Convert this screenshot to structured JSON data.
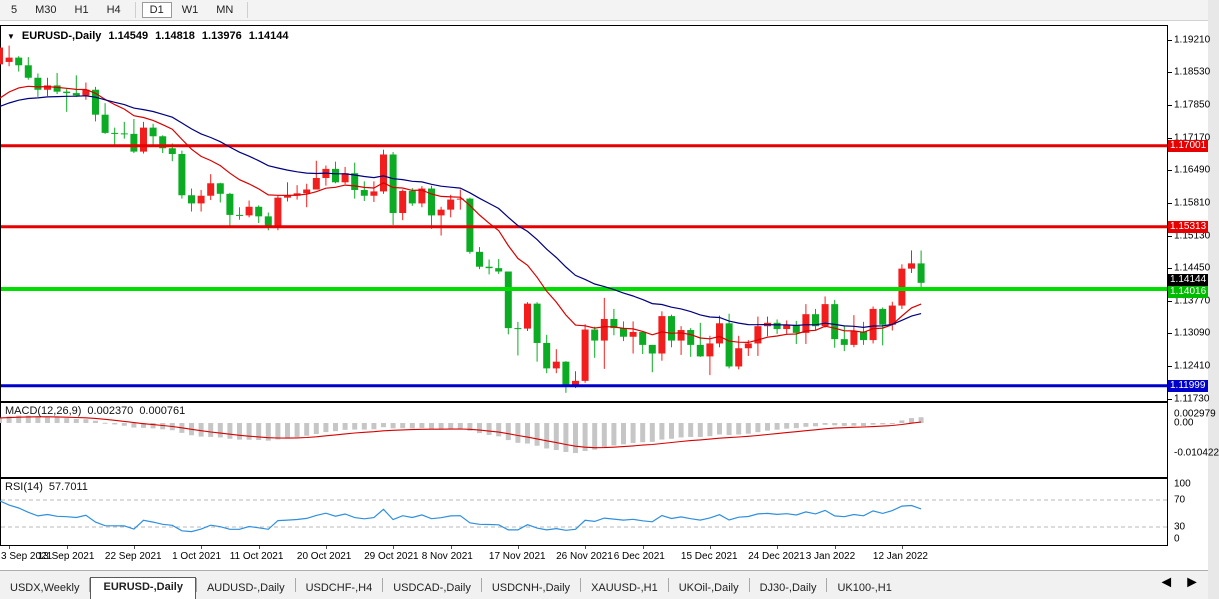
{
  "toolbar": {
    "timeframes": [
      "5",
      "M30",
      "H1",
      "H4",
      "D1",
      "W1",
      "MN"
    ],
    "active_timeframe": "D1",
    "separators_after": [
      "H4",
      "MN"
    ]
  },
  "chart": {
    "symbol_label": "EURUSD-,Daily",
    "ohlc": {
      "open": "1.14549",
      "high": "1.14818",
      "low": "1.13976",
      "close": "1.14144"
    },
    "colors": {
      "bull": "#f21d1d",
      "bear": "#0cab24",
      "ma_fast": "#d90000",
      "ma_slow": "#00007e",
      "background": "#ffffff",
      "border": "#000000"
    },
    "hlines": [
      {
        "price": 1.17001,
        "color": "#e60000",
        "width": 3
      },
      {
        "price": 1.15313,
        "color": "#e60000",
        "width": 3
      },
      {
        "price": 1.14016,
        "color": "#00dd00",
        "width": 4
      },
      {
        "price": 1.11999,
        "color": "#0000cc",
        "width": 3
      }
    ],
    "price_axis": {
      "labels": [
        "1.19210",
        "1.18530",
        "1.17850",
        "1.17170",
        "1.16490",
        "1.15810",
        "1.15130",
        "1.14450",
        "1.13770",
        "1.13090",
        "1.12410",
        "1.11730"
      ],
      "badges": [
        {
          "text": "1.17001",
          "bg": "#e60000",
          "price": 1.17001
        },
        {
          "text": "1.15313",
          "bg": "#e60000",
          "price": 1.15313
        },
        {
          "text": "1.14144",
          "bg": "#000000",
          "price": 1.14144
        },
        {
          "text": "1.14016",
          "bg": "#00bb00",
          "price": 1.14016
        },
        {
          "text": "1.11999",
          "bg": "#0000cc",
          "price": 1.11999
        }
      ]
    },
    "date_axis": [
      {
        "text": "3 Sep 2021",
        "i": 1
      },
      {
        "text": "13 Sep 2021",
        "i": 7
      },
      {
        "text": "22 Sep 2021",
        "i": 14
      },
      {
        "text": "1 Oct 2021",
        "i": 21
      },
      {
        "text": "11 Oct 2021",
        "i": 27
      },
      {
        "text": "20 Oct 2021",
        "i": 34
      },
      {
        "text": "29 Oct 2021",
        "i": 41
      },
      {
        "text": "8 Nov 2021",
        "i": 47
      },
      {
        "text": "17 Nov 2021",
        "i": 54
      },
      {
        "text": "26 Nov 2021",
        "i": 61
      },
      {
        "text": "6 Dec 2021",
        "i": 67
      },
      {
        "text": "15 Dec 2021",
        "i": 74
      },
      {
        "text": "24 Dec 2021",
        "i": 81
      },
      {
        "text": "3 Jan 2022",
        "i": 87
      },
      {
        "text": "12 Jan 2022",
        "i": 94
      }
    ]
  },
  "chart_data": {
    "type": "candlestick",
    "symbol": "EURUSD",
    "timeframe": "Daily",
    "note": "up candles drawn red, down candles drawn green in this template",
    "visible_price_range": [
      1.1168,
      1.1952
    ],
    "candles": [
      [
        "2021-09-02",
        1.187,
        1.1911,
        1.1855,
        1.1905
      ],
      [
        "2021-09-03",
        1.1875,
        1.1909,
        1.1866,
        1.1884
      ],
      [
        "2021-09-06",
        1.1884,
        1.1887,
        1.1855,
        1.1868
      ],
      [
        "2021-09-07",
        1.1868,
        1.1885,
        1.1838,
        1.1842
      ],
      [
        "2021-09-08",
        1.1842,
        1.1851,
        1.1802,
        1.1817
      ],
      [
        "2021-09-09",
        1.1817,
        1.1842,
        1.1804,
        1.1826
      ],
      [
        "2021-09-10",
        1.1826,
        1.1852,
        1.1808,
        1.1813
      ],
      [
        "2021-09-13",
        1.1813,
        1.1819,
        1.1771,
        1.181
      ],
      [
        "2021-09-14",
        1.181,
        1.1847,
        1.1802,
        1.1805
      ],
      [
        "2021-09-15",
        1.1805,
        1.1832,
        1.1796,
        1.1817
      ],
      [
        "2021-09-16",
        1.1817,
        1.1823,
        1.1751,
        1.1765
      ],
      [
        "2021-09-17",
        1.1765,
        1.1789,
        1.1725,
        1.1727
      ],
      [
        "2021-09-20",
        1.1727,
        1.1738,
        1.17,
        1.1726
      ],
      [
        "2021-09-21",
        1.1726,
        1.175,
        1.1715,
        1.1725
      ],
      [
        "2021-09-22",
        1.1725,
        1.1756,
        1.1685,
        1.1688
      ],
      [
        "2021-09-23",
        1.1688,
        1.175,
        1.1684,
        1.1738
      ],
      [
        "2021-09-24",
        1.1738,
        1.1746,
        1.1702,
        1.172
      ],
      [
        "2021-09-27",
        1.172,
        1.1722,
        1.1685,
        1.1695
      ],
      [
        "2021-09-28",
        1.1695,
        1.1705,
        1.1668,
        1.1683
      ],
      [
        "2021-09-29",
        1.1683,
        1.169,
        1.159,
        1.1597
      ],
      [
        "2021-09-30",
        1.1597,
        1.1611,
        1.1563,
        1.158
      ],
      [
        "2021-10-01",
        1.158,
        1.1608,
        1.1563,
        1.1596
      ],
      [
        "2021-10-04",
        1.1596,
        1.1641,
        1.1587,
        1.1622
      ],
      [
        "2021-10-05",
        1.1622,
        1.1623,
        1.1582,
        1.16
      ],
      [
        "2021-10-06",
        1.16,
        1.1602,
        1.1529,
        1.1556
      ],
      [
        "2021-10-07",
        1.1556,
        1.1572,
        1.1546,
        1.1555
      ],
      [
        "2021-10-08",
        1.1555,
        1.1586,
        1.1551,
        1.1573
      ],
      [
        "2021-10-11",
        1.1573,
        1.1576,
        1.1539,
        1.1553
      ],
      [
        "2021-10-12",
        1.1553,
        1.1561,
        1.1524,
        1.1529
      ],
      [
        "2021-10-13",
        1.1529,
        1.1597,
        1.1524,
        1.1592
      ],
      [
        "2021-10-14",
        1.1592,
        1.1624,
        1.1584,
        1.1596
      ],
      [
        "2021-10-15",
        1.1596,
        1.1618,
        1.1588,
        1.1601
      ],
      [
        "2021-10-18",
        1.1601,
        1.1621,
        1.1572,
        1.1609
      ],
      [
        "2021-10-19",
        1.1609,
        1.1669,
        1.1609,
        1.1633
      ],
      [
        "2021-10-20",
        1.1633,
        1.1659,
        1.1617,
        1.1652
      ],
      [
        "2021-10-21",
        1.1652,
        1.1667,
        1.1622,
        1.1624
      ],
      [
        "2021-10-22",
        1.1624,
        1.1656,
        1.162,
        1.1643
      ],
      [
        "2021-10-25",
        1.1643,
        1.1665,
        1.159,
        1.1608
      ],
      [
        "2021-10-26",
        1.1608,
        1.1626,
        1.1585,
        1.1596
      ],
      [
        "2021-10-27",
        1.1596,
        1.1626,
        1.1583,
        1.1605
      ],
      [
        "2021-10-28",
        1.1605,
        1.1692,
        1.16,
        1.1682
      ],
      [
        "2021-10-29",
        1.1682,
        1.1687,
        1.1535,
        1.156
      ],
      [
        "2021-11-01",
        1.156,
        1.1609,
        1.1545,
        1.1606
      ],
      [
        "2021-11-02",
        1.1606,
        1.1612,
        1.1575,
        1.158
      ],
      [
        "2021-11-03",
        1.158,
        1.1616,
        1.1572,
        1.1611
      ],
      [
        "2021-11-04",
        1.1611,
        1.1617,
        1.1527,
        1.1555
      ],
      [
        "2021-11-05",
        1.1555,
        1.1573,
        1.1513,
        1.1567
      ],
      [
        "2021-11-08",
        1.1567,
        1.1598,
        1.1551,
        1.1588
      ],
      [
        "2021-11-09",
        1.1588,
        1.1609,
        1.1567,
        1.159
      ],
      [
        "2021-11-10",
        1.159,
        1.1592,
        1.1475,
        1.1479
      ],
      [
        "2021-11-11",
        1.1479,
        1.1489,
        1.1443,
        1.1448
      ],
      [
        "2021-11-12",
        1.1448,
        1.1463,
        1.1432,
        1.1445
      ],
      [
        "2021-11-15",
        1.1445,
        1.1464,
        1.1433,
        1.1438
      ],
      [
        "2021-11-16",
        1.1438,
        1.1438,
        1.1307,
        1.132
      ],
      [
        "2021-11-17",
        1.132,
        1.1333,
        1.1263,
        1.1319
      ],
      [
        "2021-11-18",
        1.1319,
        1.1374,
        1.1314,
        1.1371
      ],
      [
        "2021-11-19",
        1.1371,
        1.1374,
        1.125,
        1.1289
      ],
      [
        "2021-11-22",
        1.1289,
        1.1306,
        1.1226,
        1.1236
      ],
      [
        "2021-11-23",
        1.1236,
        1.1276,
        1.1226,
        1.125
      ],
      [
        "2021-11-24",
        1.125,
        1.1251,
        1.1185,
        1.12
      ],
      [
        "2021-11-25",
        1.12,
        1.123,
        1.1195,
        1.121
      ],
      [
        "2021-11-26",
        1.121,
        1.1328,
        1.1206,
        1.1317
      ],
      [
        "2021-11-29",
        1.1317,
        1.1323,
        1.1258,
        1.1294
      ],
      [
        "2021-11-30",
        1.1294,
        1.1383,
        1.1235,
        1.1339
      ],
      [
        "2021-12-01",
        1.1339,
        1.136,
        1.1305,
        1.132
      ],
      [
        "2021-12-02",
        1.132,
        1.1334,
        1.1293,
        1.1302
      ],
      [
        "2021-12-03",
        1.1302,
        1.1334,
        1.1267,
        1.1312
      ],
      [
        "2021-12-06",
        1.1312,
        1.1313,
        1.1266,
        1.1285
      ],
      [
        "2021-12-07",
        1.1285,
        1.1285,
        1.1228,
        1.1267
      ],
      [
        "2021-12-08",
        1.1267,
        1.1355,
        1.1252,
        1.1345
      ],
      [
        "2021-12-09",
        1.1345,
        1.1348,
        1.128,
        1.1294
      ],
      [
        "2021-12-10",
        1.1294,
        1.1324,
        1.1264,
        1.1316
      ],
      [
        "2021-12-13",
        1.1316,
        1.132,
        1.126,
        1.1285
      ],
      [
        "2021-12-14",
        1.1285,
        1.1331,
        1.126,
        1.1261
      ],
      [
        "2021-12-15",
        1.1261,
        1.1304,
        1.1222,
        1.1288
      ],
      [
        "2021-12-16",
        1.1288,
        1.1346,
        1.128,
        1.133
      ],
      [
        "2021-12-17",
        1.133,
        1.135,
        1.1236,
        1.124
      ],
      [
        "2021-12-20",
        1.124,
        1.1304,
        1.1234,
        1.1278
      ],
      [
        "2021-12-21",
        1.1278,
        1.1295,
        1.1262,
        1.1288
      ],
      [
        "2021-12-22",
        1.1288,
        1.1344,
        1.1262,
        1.1324
      ],
      [
        "2021-12-23",
        1.1324,
        1.1344,
        1.1303,
        1.1331
      ],
      [
        "2021-12-24",
        1.1331,
        1.1338,
        1.1308,
        1.1318
      ],
      [
        "2021-12-27",
        1.1318,
        1.1336,
        1.1308,
        1.1327
      ],
      [
        "2021-12-28",
        1.1327,
        1.1335,
        1.1287,
        1.131
      ],
      [
        "2021-12-29",
        1.131,
        1.137,
        1.1287,
        1.1349
      ],
      [
        "2021-12-30",
        1.1349,
        1.136,
        1.1315,
        1.1324
      ],
      [
        "2021-12-31",
        1.1324,
        1.1386,
        1.1321,
        1.137
      ],
      [
        "2022-01-03",
        1.137,
        1.1379,
        1.1279,
        1.1297
      ],
      [
        "2022-01-04",
        1.1297,
        1.1324,
        1.1272,
        1.1285
      ],
      [
        "2022-01-05",
        1.1285,
        1.1347,
        1.128,
        1.1313
      ],
      [
        "2022-01-06",
        1.1313,
        1.1333,
        1.1285,
        1.1295
      ],
      [
        "2022-01-07",
        1.1295,
        1.1365,
        1.1288,
        1.136
      ],
      [
        "2022-01-10",
        1.136,
        1.1363,
        1.1284,
        1.1327
      ],
      [
        "2022-01-11",
        1.1327,
        1.1375,
        1.1315,
        1.1367
      ],
      [
        "2022-01-12",
        1.1367,
        1.1453,
        1.136,
        1.1444
      ],
      [
        "2022-01-13",
        1.1444,
        1.1482,
        1.1435,
        1.1455
      ],
      [
        "2022-01-14",
        1.14549,
        1.14818,
        1.13976,
        1.14144
      ]
    ],
    "moving_averages": [
      {
        "name": "fast-ema-12",
        "period": 12,
        "seed": 1.178,
        "color": "#d90000"
      },
      {
        "name": "slow-ema-26",
        "period": 26,
        "seed": 1.1772,
        "color": "#00007e"
      }
    ],
    "indicators": {
      "macd": {
        "label": "MACD(12,26,9)",
        "value": "0.002370",
        "signal_value": "0.000761",
        "axis_labels": [
          {
            "text": "0.002979",
            "v": 0.002979
          },
          {
            "text": "0.00",
            "v": 0.0
          },
          {
            "text": "-0.010422",
            "v": -0.010422
          }
        ],
        "histogram_color": "#c6c6c6",
        "signal_color": "#d90000"
      },
      "rsi": {
        "label": "RSI(14)",
        "value": "57.7011",
        "axis_labels": [
          {
            "text": "100",
            "v": 100
          },
          {
            "text": "70",
            "v": 70
          },
          {
            "text": "30",
            "v": 30
          },
          {
            "text": "0",
            "v": 0
          }
        ],
        "levels": [
          70,
          30
        ],
        "line_color": "#2f8fdd",
        "level_color": "#b8b8b8",
        "seed_avg_gain": 0.0011,
        "seed_avg_loss": 0.0005
      }
    }
  },
  "tabs": {
    "items": [
      "USDX,Weekly",
      "EURUSD-,Daily",
      "AUDUSD-,Daily",
      "USDCHF-,H4",
      "USDCAD-,Daily",
      "USDCNH-,Daily",
      "XAUUSD-,H1",
      "UKOil-,Daily",
      "DJ30-,Daily",
      "UK100-,H1"
    ],
    "active": "EURUSD-,Daily",
    "scroll_left_icon": "◄",
    "scroll_right_icon": "►"
  }
}
